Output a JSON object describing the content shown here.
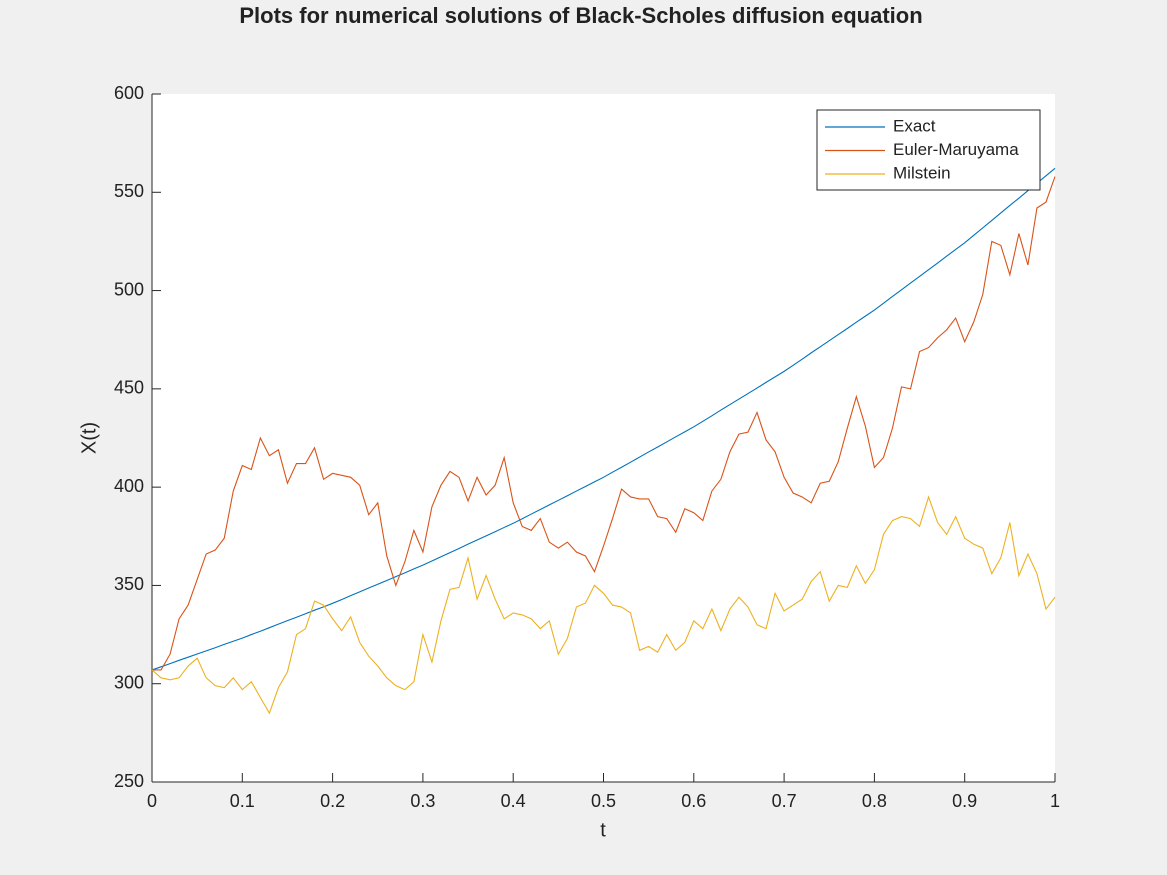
{
  "chart_data": {
    "type": "line",
    "title": "Plots for numerical solutions of Black-Scholes diffusion equation",
    "x_label": "t",
    "y_label": "X(t)",
    "x": [
      0,
      0.01,
      0.02,
      0.03,
      0.04,
      0.05,
      0.06,
      0.07,
      0.08,
      0.09,
      0.1,
      0.11,
      0.12,
      0.13,
      0.14,
      0.15,
      0.16,
      0.17,
      0.18,
      0.19,
      0.2,
      0.21,
      0.22,
      0.23,
      0.24,
      0.25,
      0.26,
      0.27,
      0.28,
      0.29,
      0.3,
      0.31,
      0.32,
      0.33,
      0.34,
      0.35,
      0.36,
      0.37,
      0.38,
      0.39,
      0.4,
      0.41,
      0.42,
      0.43,
      0.44,
      0.45,
      0.46,
      0.47,
      0.48,
      0.49,
      0.5,
      0.51,
      0.52,
      0.53,
      0.54,
      0.55,
      0.56,
      0.57,
      0.58,
      0.59,
      0.6,
      0.61,
      0.62,
      0.63,
      0.64,
      0.65,
      0.66,
      0.67,
      0.68,
      0.69,
      0.7,
      0.71,
      0.72,
      0.73,
      0.74,
      0.75,
      0.76,
      0.77,
      0.78,
      0.79,
      0.8,
      0.81,
      0.82,
      0.83,
      0.84,
      0.85,
      0.86,
      0.87,
      0.88,
      0.89,
      0.9,
      0.91,
      0.92,
      0.93,
      0.94,
      0.95,
      0.96,
      0.97,
      0.98,
      0.99,
      1
    ],
    "series": [
      {
        "name": "Exact",
        "color": "#0072bd",
        "values": [
          307,
          308.6,
          310.2,
          311.9,
          313.5,
          315.1,
          316.7,
          318.3,
          320.0,
          321.6,
          323.2,
          325.0,
          326.7,
          328.5,
          330.3,
          332.1,
          333.8,
          335.6,
          337.4,
          339.1,
          340.9,
          342.8,
          344.8,
          346.7,
          348.7,
          350.6,
          352.5,
          354.5,
          356.4,
          358.4,
          360.3,
          362.4,
          364.6,
          366.7,
          368.8,
          371.0,
          373.1,
          375.2,
          377.3,
          379.5,
          381.6,
          383.9,
          386.3,
          388.6,
          391.0,
          393.3,
          395.6,
          398.0,
          400.3,
          402.7,
          405.0,
          407.6,
          410.1,
          412.7,
          415.3,
          417.9,
          420.4,
          423.0,
          425.6,
          428.1,
          430.7,
          433.5,
          436.3,
          439.2,
          442.0,
          444.8,
          447.6,
          450.4,
          453.3,
          456.1,
          458.9,
          462.0,
          465.1,
          468.3,
          471.4,
          474.5,
          477.6,
          480.7,
          483.9,
          487.0,
          490.1,
          493.5,
          497.0,
          500.4,
          503.8,
          507.2,
          510.6,
          514.0,
          517.5,
          520.9,
          524.3,
          528.1,
          531.9,
          535.7,
          539.5,
          543.3,
          547.0,
          550.8,
          554.6,
          558.4,
          562.2
        ]
      },
      {
        "name": "Euler-Maruyama",
        "color": "#d95319",
        "values": [
          307,
          307,
          315,
          333,
          340,
          353,
          366,
          368,
          374,
          398,
          411,
          409,
          425,
          416,
          419,
          402,
          412,
          412,
          420,
          404,
          407,
          406,
          405,
          401,
          386,
          392,
          365,
          350,
          362,
          378,
          367,
          390,
          401,
          408,
          405,
          393,
          405,
          396,
          401,
          415,
          392,
          380,
          378,
          384,
          372,
          369,
          372,
          367,
          365,
          357,
          370,
          384,
          399,
          395,
          394,
          394,
          385,
          384,
          377,
          389,
          387,
          383,
          398,
          404,
          418,
          427,
          428,
          438,
          424,
          418,
          405,
          397,
          395,
          392,
          402,
          403,
          413,
          430,
          446,
          431,
          410,
          415,
          430,
          451,
          450,
          469,
          471,
          476,
          480,
          486,
          474,
          484,
          498,
          525,
          523,
          508,
          529,
          513,
          542,
          545,
          558
        ]
      },
      {
        "name": "Milstein",
        "color": "#edb120",
        "values": [
          307,
          303,
          302,
          303,
          309,
          313,
          303,
          299,
          298,
          303,
          297,
          301,
          293,
          285,
          298,
          306,
          325,
          328,
          342,
          340,
          333,
          327,
          334,
          321,
          314,
          309,
          303,
          299,
          297,
          301,
          325,
          311,
          332,
          348,
          349,
          364,
          343,
          355,
          343,
          333,
          336,
          335,
          333,
          328,
          332,
          315,
          323,
          339,
          341,
          350,
          346,
          340,
          339,
          336,
          317,
          319,
          316,
          325,
          317,
          321,
          332,
          328,
          338,
          327,
          338,
          344,
          339,
          330,
          328,
          346,
          337,
          340,
          343,
          352,
          357,
          342,
          350,
          349,
          360,
          351,
          358,
          376,
          383,
          385,
          384,
          380,
          395,
          382,
          376,
          385,
          374,
          371,
          369,
          356,
          364,
          382,
          355,
          366,
          356,
          338,
          344
        ]
      }
    ],
    "xlim": [
      0,
      1
    ],
    "ylim": [
      250,
      600
    ],
    "xticks": [
      0,
      0.1,
      0.2,
      0.3,
      0.4,
      0.5,
      0.6,
      0.7,
      0.8,
      0.9,
      1
    ],
    "yticks": [
      250,
      300,
      350,
      400,
      450,
      500,
      550,
      600
    ],
    "grid": false,
    "legend": "northeast"
  }
}
